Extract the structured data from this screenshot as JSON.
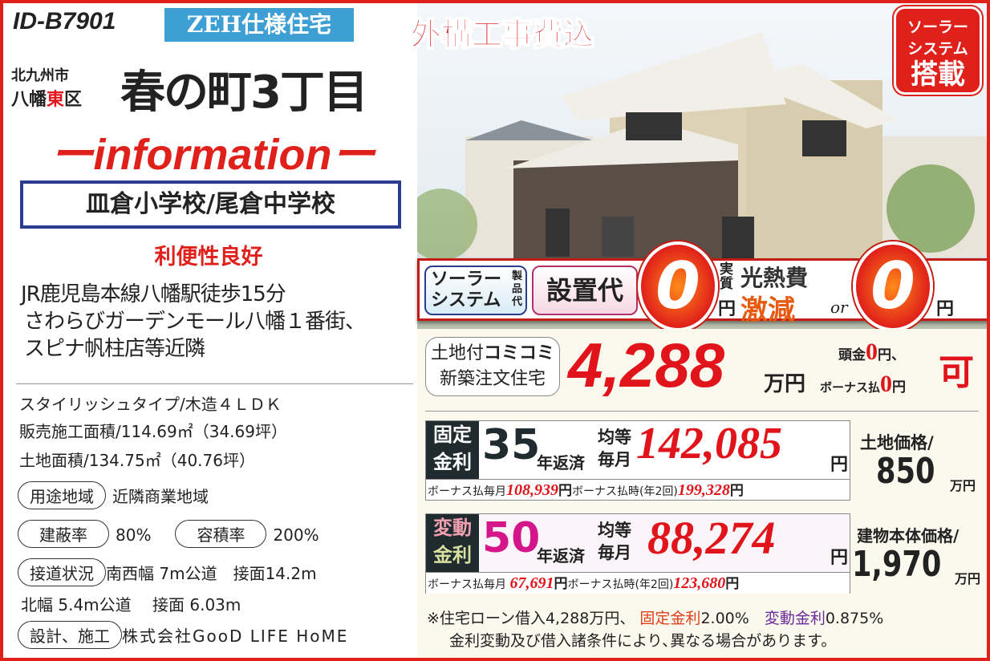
{
  "header": {
    "property_id": "ID-B7901",
    "zeh_badge": "ZEH仕様住宅",
    "city": "北九州市",
    "ward_prefix": "八幡",
    "ward_highlight": "東",
    "ward_suffix": "区",
    "town": "春の町3丁目",
    "info_title": "ーinformationー"
  },
  "schools": "皿倉小学校/尾倉中学校",
  "convenience": {
    "title": "利便性良好",
    "lines": [
      "JR鹿児島本線八幡駅徒歩15分",
      "さわらびガーデンモール八幡１番街、",
      "スピナ帆柱店等近隣"
    ]
  },
  "specs": [
    "スタイリッシュタイプ/木造４ＬＤＫ",
    "販売施工面積/114.69㎡（34.69坪）",
    "土地面積/134.75㎡（40.76坪）"
  ],
  "details": [
    {
      "label": "用途地域",
      "value": "近隣商業地域"
    },
    {
      "label": "建蔽率",
      "value": "80%",
      "label2": "容積率",
      "value2": "200%"
    },
    {
      "label": "接道状況",
      "value": "南西幅 7m公道　接面14.2m",
      "value_line2": "北幅 5.4m公道　 接面 6.03m"
    },
    {
      "label": "設計、施工",
      "value": "株式会社GooD LIFE HoME"
    }
  ],
  "photo": {
    "exterior_included": "外構工事費込",
    "solar_badge": [
      "ソーラー",
      "システム",
      "搭載"
    ]
  },
  "band": {
    "solar_system": [
      "ソーラー",
      "システム"
    ],
    "product_cost": "製品代",
    "install_cost": "設置代",
    "zero": "0",
    "jisshitsu": "実質",
    "yen": "円",
    "utility": "光熱費",
    "reduction": "激減",
    "or": "or"
  },
  "price": {
    "label_line1_a": "土地付",
    "label_line1_b": "コミコミ",
    "label_line2": "新築注文住宅",
    "amount": "4,288",
    "unit": "万円",
    "down_payment": "頭金",
    "zero": "0",
    "yen_comma": "円、",
    "bonus": "ボーナス払",
    "yen": "円",
    "ok": "可"
  },
  "loans": [
    {
      "type": [
        "固定",
        "金利"
      ],
      "years": "35",
      "years_suffix": "年返済",
      "monthly_label": [
        "均等",
        "毎月"
      ],
      "monthly": "142,085",
      "yen": "円",
      "bonus_monthly_label": "ボーナス払毎月",
      "bonus_monthly": "108,939",
      "bonus_time_label": "ボーナス払時(年2回)",
      "bonus_time": "199,328",
      "color": "#1f2b2e"
    },
    {
      "type": [
        "変動",
        "金利"
      ],
      "years": "50",
      "years_suffix": "年返済",
      "monthly_label": [
        "均等",
        "毎月"
      ],
      "monthly": "88,274",
      "yen": "円",
      "bonus_monthly_label": "ボーナス払毎月",
      "bonus_monthly": "67,691",
      "bonus_time_label": "ボーナス払時(年2回)",
      "bonus_time": "123,680",
      "color": "#d4168a"
    }
  ],
  "side_prices": [
    {
      "label": "土地価格/",
      "value": "850",
      "unit": "万円"
    },
    {
      "label": "建物本体価格/",
      "value": "1,970",
      "unit": "万円"
    }
  ],
  "note": {
    "line1_a": "※住宅ローン借入4,288万円、",
    "fixed_label": "固定金利",
    "fixed_rate": "2.00%",
    "variable_label": "変動金利",
    "variable_rate": "0.875%",
    "line2": "金利変動及び借入諸条件により､異なる場合があります。"
  }
}
